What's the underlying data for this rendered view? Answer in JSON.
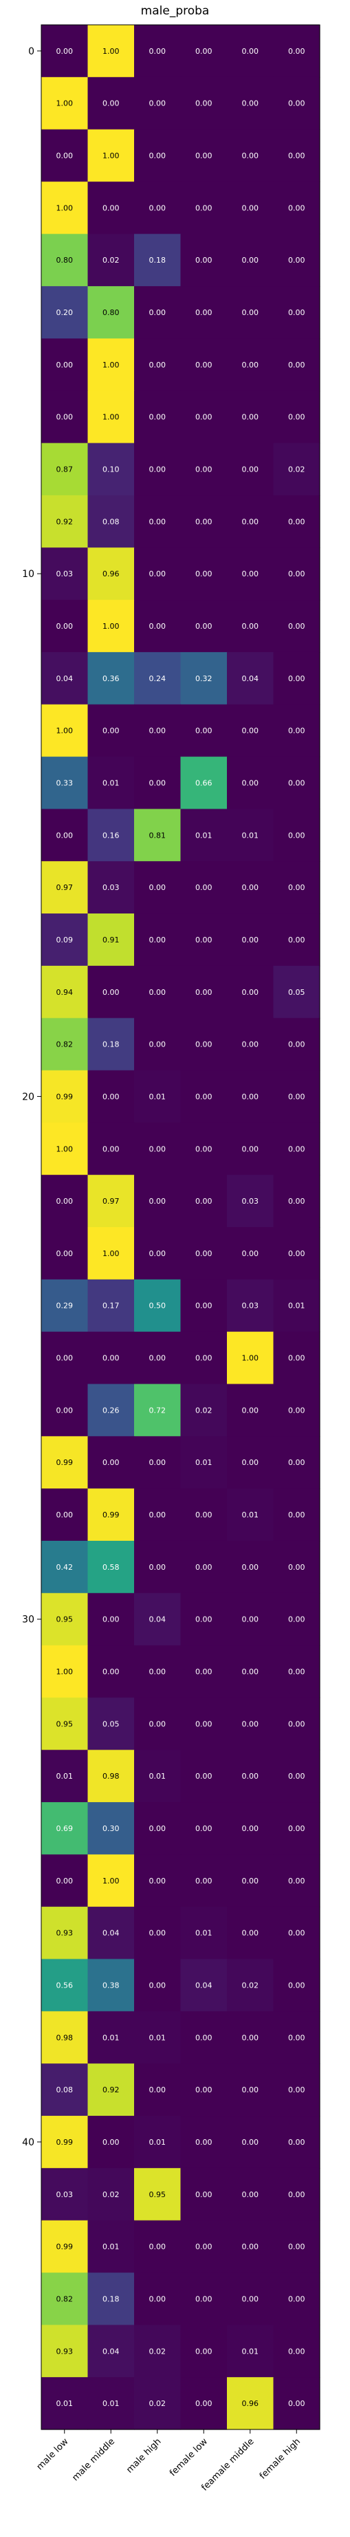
{
  "chart_data": {
    "type": "heatmap",
    "title": "male_proba",
    "columns": [
      "male low",
      "male middle",
      "male high",
      "female low",
      "feamale middle",
      "female high"
    ],
    "y_ticks": [
      0,
      10,
      20,
      30,
      40
    ],
    "values": [
      [
        0.0,
        1.0,
        0.0,
        0.0,
        0.0,
        0.0
      ],
      [
        1.0,
        0.0,
        0.0,
        0.0,
        0.0,
        0.0
      ],
      [
        0.0,
        1.0,
        0.0,
        0.0,
        0.0,
        0.0
      ],
      [
        1.0,
        0.0,
        0.0,
        0.0,
        0.0,
        0.0
      ],
      [
        0.8,
        0.02,
        0.18,
        0.0,
        0.0,
        0.0
      ],
      [
        0.2,
        0.8,
        0.0,
        0.0,
        0.0,
        0.0
      ],
      [
        0.0,
        1.0,
        0.0,
        0.0,
        0.0,
        0.0
      ],
      [
        0.0,
        1.0,
        0.0,
        0.0,
        0.0,
        0.0
      ],
      [
        0.87,
        0.1,
        0.0,
        0.0,
        0.0,
        0.02
      ],
      [
        0.92,
        0.08,
        0.0,
        0.0,
        0.0,
        0.0
      ],
      [
        0.03,
        0.96,
        0.0,
        0.0,
        0.0,
        0.0
      ],
      [
        0.0,
        1.0,
        0.0,
        0.0,
        0.0,
        0.0
      ],
      [
        0.04,
        0.36,
        0.24,
        0.32,
        0.04,
        0.0
      ],
      [
        1.0,
        0.0,
        0.0,
        0.0,
        0.0,
        0.0
      ],
      [
        0.33,
        0.01,
        0.0,
        0.66,
        0.0,
        0.0
      ],
      [
        0.0,
        0.16,
        0.81,
        0.01,
        0.01,
        0.0
      ],
      [
        0.97,
        0.03,
        0.0,
        0.0,
        0.0,
        0.0
      ],
      [
        0.09,
        0.91,
        0.0,
        0.0,
        0.0,
        0.0
      ],
      [
        0.94,
        0.0,
        0.0,
        0.0,
        0.0,
        0.05
      ],
      [
        0.82,
        0.18,
        0.0,
        0.0,
        0.0,
        0.0
      ],
      [
        0.99,
        0.0,
        0.01,
        0.0,
        0.0,
        0.0
      ],
      [
        1.0,
        0.0,
        0.0,
        0.0,
        0.0,
        0.0
      ],
      [
        0.0,
        0.97,
        0.0,
        0.0,
        0.03,
        0.0
      ],
      [
        0.0,
        1.0,
        0.0,
        0.0,
        0.0,
        0.0
      ],
      [
        0.29,
        0.17,
        0.5,
        0.0,
        0.03,
        0.01
      ],
      [
        0.0,
        0.0,
        0.0,
        0.0,
        1.0,
        0.0
      ],
      [
        0.0,
        0.26,
        0.72,
        0.02,
        0.0,
        0.0
      ],
      [
        0.99,
        0.0,
        0.0,
        0.01,
        0.0,
        0.0
      ],
      [
        0.0,
        0.99,
        0.0,
        0.0,
        0.01,
        0.0
      ],
      [
        0.42,
        0.58,
        0.0,
        0.0,
        0.0,
        0.0
      ],
      [
        0.95,
        0.0,
        0.04,
        0.0,
        0.0,
        0.0
      ],
      [
        1.0,
        0.0,
        0.0,
        0.0,
        0.0,
        0.0
      ],
      [
        0.95,
        0.05,
        0.0,
        0.0,
        0.0,
        0.0
      ],
      [
        0.01,
        0.98,
        0.01,
        0.0,
        0.0,
        0.0
      ],
      [
        0.69,
        0.3,
        0.0,
        0.0,
        0.0,
        0.0
      ],
      [
        0.0,
        1.0,
        0.0,
        0.0,
        0.0,
        0.0
      ],
      [
        0.93,
        0.04,
        0.0,
        0.01,
        0.0,
        0.0
      ],
      [
        0.56,
        0.38,
        0.0,
        0.04,
        0.02,
        0.0
      ],
      [
        0.98,
        0.01,
        0.01,
        0.0,
        0.0,
        0.0
      ],
      [
        0.08,
        0.92,
        0.0,
        0.0,
        0.0,
        0.0
      ],
      [
        0.99,
        0.0,
        0.01,
        0.0,
        0.0,
        0.0
      ],
      [
        0.03,
        0.02,
        0.95,
        0.0,
        0.0,
        0.0
      ],
      [
        0.99,
        0.01,
        0.0,
        0.0,
        0.0,
        0.0
      ],
      [
        0.82,
        0.18,
        0.0,
        0.0,
        0.0,
        0.0
      ],
      [
        0.93,
        0.04,
        0.02,
        0.0,
        0.01,
        0.0
      ],
      [
        0.01,
        0.01,
        0.02,
        0.0,
        0.96,
        0.0
      ]
    ],
    "value_range": [
      0,
      1
    ],
    "colormap": "viridis",
    "value_format": "0.00",
    "grid": false,
    "colors": {
      "low": "#440154",
      "high": "#fde725",
      "text_on_dark": "#ffffff",
      "text_on_light": "#000000"
    }
  }
}
